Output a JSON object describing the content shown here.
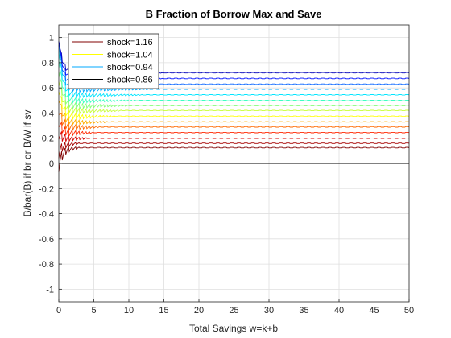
{
  "chart_data": {
    "type": "line",
    "title": "B Fraction of Borrow Max and Save",
    "xlabel": "Total Savings w=k+b",
    "ylabel": "B/bar(B) if br or B/W if sv",
    "xlim": [
      0,
      50
    ],
    "ylim": [
      -1.1,
      1.1
    ],
    "xticks": [
      0,
      5,
      10,
      15,
      20,
      25,
      30,
      35,
      40,
      45,
      50
    ],
    "yticks": [
      -1,
      -0.8,
      -0.6,
      -0.4,
      -0.2,
      0,
      0.2,
      0.4,
      0.6,
      0.8,
      1
    ],
    "xtick_labels": [
      "0",
      "5",
      "10",
      "15",
      "20",
      "25",
      "30",
      "35",
      "40",
      "45",
      "50"
    ],
    "ytick_labels": [
      "-1",
      "-0.8",
      "-0.6",
      "-0.4",
      "-0.2",
      "0",
      "0.2",
      "0.4",
      "0.6",
      "0.8",
      "1"
    ],
    "grid": true,
    "legend_placement": "top-left",
    "colormap": "jet",
    "series": [
      {
        "name": "",
        "color": "#800000",
        "plateau": 0.125,
        "start": 0.0,
        "osc_until": 3,
        "osc_amp": 0.07
      },
      {
        "name": "",
        "color": "#a50000",
        "plateau": 0.16,
        "start": 0.1,
        "osc_until": 3,
        "osc_amp": 0.06
      },
      {
        "name": "",
        "color": "#d40000",
        "plateau": 0.2,
        "start": 0.25,
        "osc_until": 4,
        "osc_amp": 0.06
      },
      {
        "name": "",
        "color": "#ff2600",
        "plateau": 0.245,
        "start": 0.35,
        "osc_until": 5,
        "osc_amp": 0.06
      },
      {
        "name": "",
        "color": "#ff6a00",
        "plateau": 0.29,
        "start": 0.45,
        "osc_until": 6,
        "osc_amp": 0.06
      },
      {
        "name": "",
        "color": "#ffae00",
        "plateau": 0.33,
        "start": 0.55,
        "osc_until": 7,
        "osc_amp": 0.05
      },
      {
        "name": "shock=1.04",
        "color": "#ffff00",
        "plateau": 0.375,
        "start": 0.62,
        "osc_until": 8,
        "osc_amp": 0.05
      },
      {
        "name": "",
        "color": "#c8ff36",
        "plateau": 0.42,
        "start": 0.7,
        "osc_until": 9,
        "osc_amp": 0.05
      },
      {
        "name": "",
        "color": "#86ff79",
        "plateau": 0.46,
        "start": 0.78,
        "osc_until": 10,
        "osc_amp": 0.05
      },
      {
        "name": "",
        "color": "#3dffc2",
        "plateau": 0.5,
        "start": 0.86,
        "osc_until": 11,
        "osc_amp": 0.04
      },
      {
        "name": "",
        "color": "#00e5ff",
        "plateau": 0.545,
        "start": 0.93,
        "osc_until": 12,
        "osc_amp": 0.04
      },
      {
        "name": "shock=0.94",
        "color": "#00a8ff",
        "plateau": 0.59,
        "start": 0.98,
        "osc_until": 13,
        "osc_amp": 0.04
      },
      {
        "name": "",
        "color": "#0060ff",
        "plateau": 0.63,
        "start": 1.0,
        "osc_until": 14,
        "osc_amp": 0.04
      },
      {
        "name": "",
        "color": "#0010ff",
        "plateau": 0.675,
        "start": 1.0,
        "osc_until": 15,
        "osc_amp": 0.03
      },
      {
        "name": "",
        "color": "#0000b8",
        "plateau": 0.72,
        "start": 1.0,
        "osc_until": 15,
        "osc_amp": 0.03
      },
      {
        "name": "",
        "color": "#000000",
        "plateau": 0.0,
        "start": 0.0,
        "osc_until": 0,
        "osc_amp": 0.0
      }
    ],
    "legend": [
      {
        "label": "shock=1.16",
        "color": "#800000"
      },
      {
        "label": "shock=1.04",
        "color": "#ffff00"
      },
      {
        "label": "shock=0.94",
        "color": "#00a8ff"
      },
      {
        "label": "shock=0.86",
        "color": "#000000"
      }
    ]
  }
}
